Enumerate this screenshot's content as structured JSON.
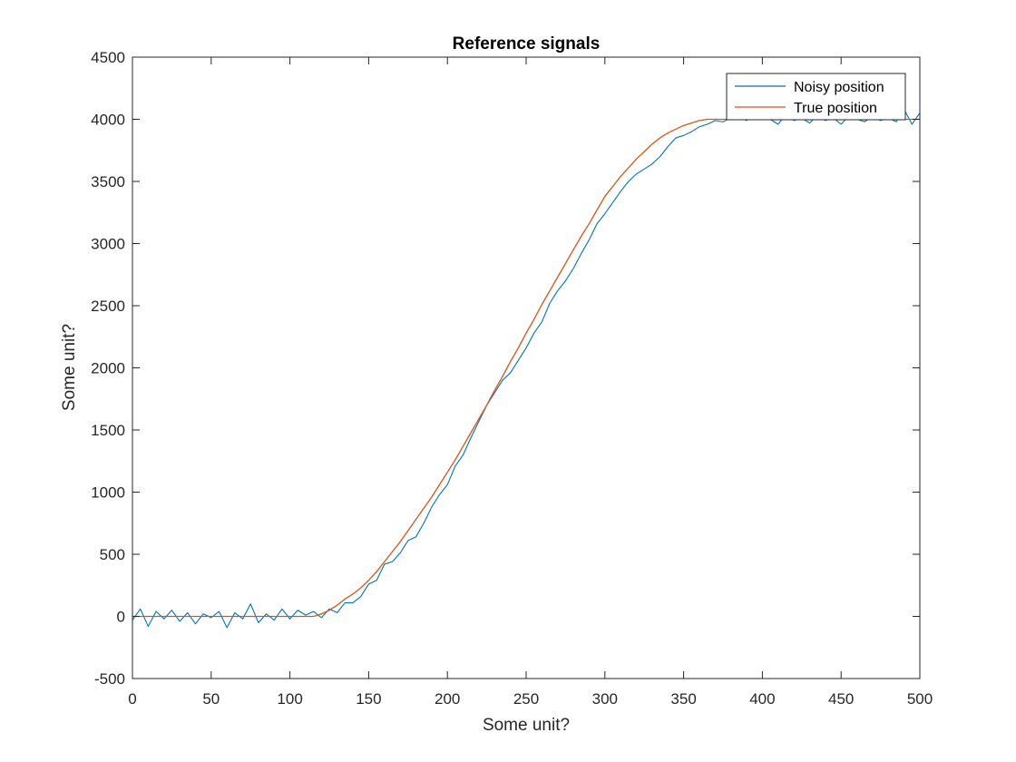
{
  "chart_data": {
    "type": "line",
    "title": "Reference signals",
    "xlabel": "Some unit?",
    "ylabel": "Some unit?",
    "xlim": [
      0,
      500
    ],
    "ylim": [
      -500,
      4500
    ],
    "x_ticks": [
      0,
      50,
      100,
      150,
      200,
      250,
      300,
      350,
      400,
      450,
      500
    ],
    "y_ticks": [
      -500,
      0,
      500,
      1000,
      1500,
      2000,
      2500,
      3000,
      3500,
      4000,
      4500
    ],
    "grid": false,
    "legend": {
      "placement": "top-right",
      "box": true
    },
    "series": [
      {
        "name": "Noisy position",
        "color": "#0072BD",
        "x": [
          0,
          5,
          10,
          15,
          20,
          25,
          30,
          35,
          40,
          45,
          50,
          55,
          60,
          65,
          70,
          75,
          80,
          85,
          90,
          95,
          100,
          105,
          110,
          115,
          120,
          125,
          130,
          135,
          140,
          145,
          150,
          155,
          160,
          165,
          170,
          175,
          180,
          185,
          190,
          195,
          200,
          205,
          210,
          215,
          220,
          225,
          230,
          235,
          240,
          245,
          250,
          255,
          260,
          265,
          270,
          275,
          280,
          285,
          290,
          295,
          300,
          305,
          310,
          315,
          320,
          325,
          330,
          335,
          340,
          345,
          350,
          355,
          360,
          365,
          370,
          375,
          380,
          385,
          390,
          395,
          400,
          405,
          410,
          415,
          420,
          425,
          430,
          435,
          440,
          445,
          450,
          455,
          460,
          465,
          470,
          475,
          480,
          485,
          490,
          495,
          500
        ],
        "y": [
          -30,
          60,
          -80,
          40,
          -20,
          50,
          -40,
          30,
          -60,
          20,
          -10,
          40,
          -90,
          30,
          -20,
          100,
          -50,
          20,
          -30,
          60,
          -20,
          50,
          10,
          40,
          -10,
          60,
          30,
          110,
          110,
          160,
          260,
          290,
          420,
          440,
          510,
          610,
          640,
          750,
          880,
          980,
          1060,
          1210,
          1300,
          1440,
          1570,
          1700,
          1800,
          1900,
          1960,
          2060,
          2160,
          2280,
          2370,
          2520,
          2620,
          2700,
          2800,
          2920,
          3030,
          3160,
          3240,
          3330,
          3420,
          3500,
          3560,
          3600,
          3640,
          3700,
          3780,
          3850,
          3870,
          3900,
          3940,
          3960,
          3990,
          3980,
          4010,
          4020,
          3990,
          4050,
          4030,
          4000,
          3960,
          4040,
          3990,
          4010,
          3970,
          4030,
          3990,
          4010,
          3960,
          4030,
          4000,
          3980,
          4030,
          3990,
          4010,
          3980,
          4080,
          3960,
          4050
        ]
      },
      {
        "name": "True position",
        "color": "#D95319",
        "x": [
          0,
          5,
          10,
          15,
          20,
          25,
          30,
          35,
          40,
          45,
          50,
          55,
          60,
          65,
          70,
          75,
          80,
          85,
          90,
          95,
          100,
          105,
          110,
          115,
          120,
          125,
          130,
          135,
          140,
          145,
          150,
          155,
          160,
          165,
          170,
          175,
          180,
          185,
          190,
          195,
          200,
          205,
          210,
          215,
          220,
          225,
          230,
          235,
          240,
          245,
          250,
          255,
          260,
          265,
          270,
          275,
          280,
          285,
          290,
          295,
          300,
          305,
          310,
          315,
          320,
          325,
          330,
          335,
          340,
          345,
          350,
          355,
          360,
          365,
          370,
          375,
          380,
          385,
          390,
          395,
          400,
          405,
          410,
          415,
          420,
          425,
          430,
          435,
          440,
          445,
          450,
          455,
          460,
          465,
          470,
          475,
          480,
          485,
          490,
          495,
          500
        ],
        "y": [
          0,
          0,
          0,
          0,
          0,
          0,
          0,
          0,
          0,
          0,
          0,
          0,
          0,
          0,
          0,
          0,
          0,
          0,
          0,
          0,
          0,
          0,
          0,
          0,
          20,
          50,
          90,
          140,
          180,
          230,
          290,
          360,
          440,
          520,
          600,
          690,
          780,
          870,
          960,
          1060,
          1160,
          1260,
          1370,
          1480,
          1590,
          1700,
          1820,
          1930,
          2050,
          2160,
          2280,
          2390,
          2510,
          2620,
          2730,
          2840,
          2950,
          3060,
          3160,
          3270,
          3380,
          3460,
          3540,
          3610,
          3680,
          3740,
          3800,
          3850,
          3890,
          3920,
          3950,
          3970,
          3990,
          4000,
          4000,
          4000,
          4000,
          4000,
          4000,
          4000,
          4000,
          4000,
          4000,
          4000,
          4000,
          4000,
          4000,
          4000,
          4000,
          4000,
          4000,
          4000,
          4000,
          4000,
          4000,
          4000,
          4000,
          4000,
          4000,
          4000,
          4000
        ]
      }
    ]
  }
}
